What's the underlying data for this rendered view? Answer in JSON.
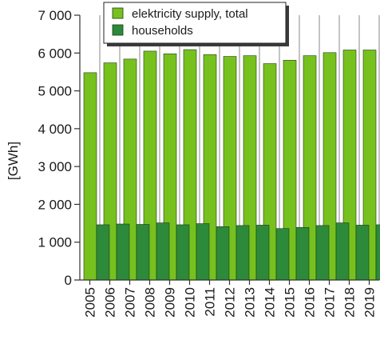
{
  "chart_data": {
    "type": "bar",
    "ylabel": "[GWh]",
    "categories": [
      "2005",
      "2006",
      "2007",
      "2008",
      "2009",
      "2010",
      "2011",
      "2012",
      "2013",
      "2014",
      "2015",
      "2016",
      "2017",
      "2018",
      "2019"
    ],
    "ylim": [
      0,
      7000
    ],
    "yticks": [
      0,
      1000,
      2000,
      3000,
      4000,
      5000,
      6000,
      7000
    ],
    "ytick_labels": [
      "0",
      "1 000",
      "2 000",
      "3 000",
      "4 000",
      "5 000",
      "6 000",
      "7 000"
    ],
    "grid": "vertical",
    "legend_position": "top-center",
    "series": [
      {
        "name": "elektricity supply, total",
        "color": "#77c11f",
        "values": [
          5480,
          5740,
          5840,
          6050,
          5980,
          6090,
          5960,
          5910,
          5930,
          5720,
          5810,
          5930,
          6010,
          6080,
          6080
        ]
      },
      {
        "name": "households",
        "color": "#2c8a3a",
        "values": [
          1460,
          1480,
          1470,
          1510,
          1460,
          1490,
          1410,
          1440,
          1450,
          1360,
          1390,
          1440,
          1510,
          1450,
          1460
        ]
      }
    ]
  }
}
